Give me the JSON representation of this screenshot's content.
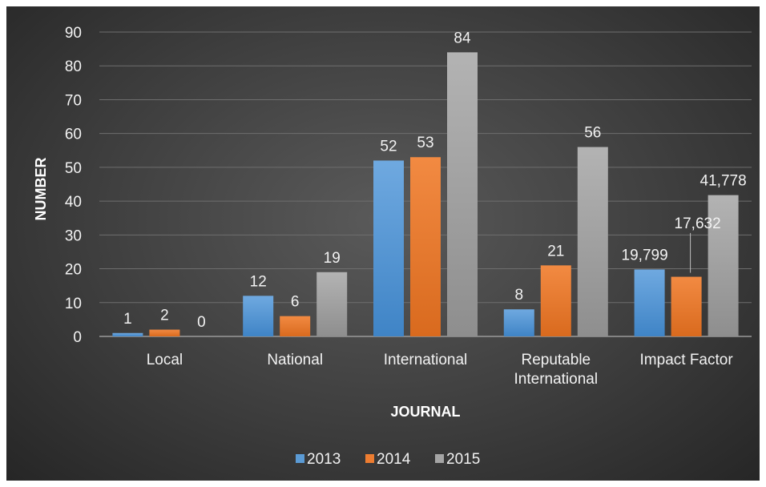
{
  "chart_data": {
    "type": "bar",
    "categories": [
      "Local",
      "National",
      "International",
      "Reputable\nInternational",
      "Impact Factor"
    ],
    "series": [
      {
        "name": "2013",
        "values": [
          1,
          12,
          52,
          8,
          19.799
        ],
        "labels": [
          "1",
          "12",
          "52",
          "8",
          "19,799"
        ],
        "color": "#5b9bd5"
      },
      {
        "name": "2014",
        "values": [
          2,
          6,
          53,
          21,
          17.632
        ],
        "labels": [
          "2",
          "6",
          "53",
          "21",
          "17,632"
        ],
        "color": "#ed7d31"
      },
      {
        "name": "2015",
        "values": [
          0,
          19,
          84,
          56,
          41.778
        ],
        "labels": [
          "0",
          "19",
          "84",
          "56",
          "41,778"
        ],
        "color": "#a5a5a5"
      }
    ],
    "xlabel": "JOURNAL",
    "ylabel": "NUMBER",
    "ylim": [
      0,
      90
    ],
    "yticks": [
      0,
      10,
      20,
      30,
      40,
      50,
      60,
      70,
      80,
      90
    ],
    "grid": true,
    "legend_position": "bottom"
  }
}
